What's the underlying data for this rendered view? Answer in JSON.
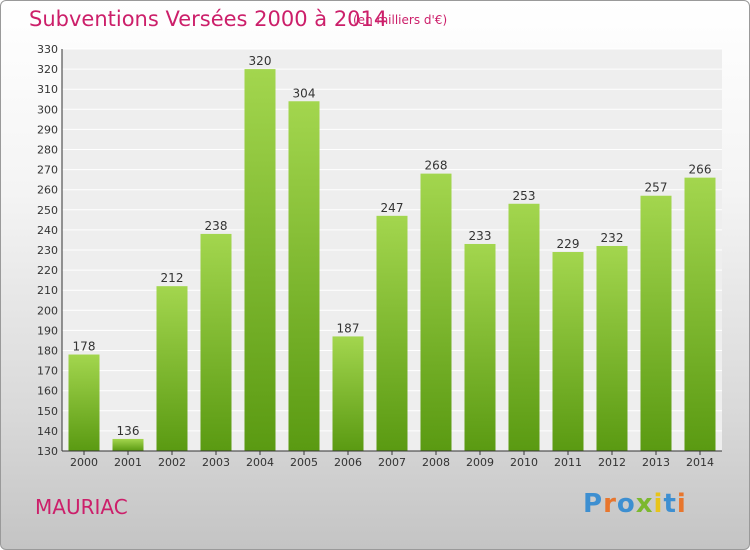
{
  "header": {
    "title": "Subventions Versées 2000 à 2014",
    "subtitle": "(en milliers d'€)"
  },
  "footer": {
    "commune": "MAURIAC",
    "logo": "Proxiti"
  },
  "colors": {
    "title": "#cc1f6a",
    "bar_light": "#a3d64e",
    "bar_dark": "#5a9a12",
    "logo_letters": [
      "#3d8fd1",
      "#e8762d",
      "#3d8fd1",
      "#7cb82f",
      "#e8c41a",
      "#3d8fd1",
      "#e8762d"
    ]
  },
  "chart_data": {
    "type": "bar",
    "categories": [
      "2000",
      "2001",
      "2002",
      "2003",
      "2004",
      "2005",
      "2006",
      "2007",
      "2008",
      "2009",
      "2010",
      "2011",
      "2012",
      "2013",
      "2014"
    ],
    "values": [
      178,
      136,
      212,
      238,
      320,
      304,
      187,
      247,
      268,
      233,
      253,
      229,
      232,
      257,
      266
    ],
    "ylim": [
      130,
      330
    ],
    "ytick_step": 10,
    "grid": true,
    "xlabel": "",
    "ylabel": ""
  }
}
